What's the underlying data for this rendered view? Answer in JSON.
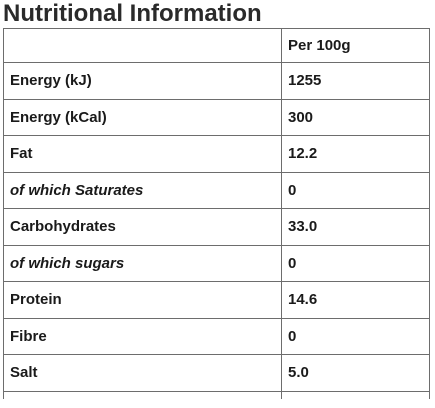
{
  "title": "Nutritional Information",
  "table": {
    "header": [
      "",
      "Per 100g"
    ],
    "rows": [
      {
        "label": "Energy (kJ)",
        "value": "1255",
        "sub": false
      },
      {
        "label": "Energy (kCal)",
        "value": "300",
        "sub": false
      },
      {
        "label": "Fat",
        "value": "12.2",
        "sub": false
      },
      {
        "label": "of which Saturates",
        "value": "0",
        "sub": true
      },
      {
        "label": "Carbohydrates",
        "value": "33.0",
        "sub": false
      },
      {
        "label": "of which sugars",
        "value": "0",
        "sub": true
      },
      {
        "label": "Protein",
        "value": "14.6",
        "sub": false
      },
      {
        "label": "Fibre",
        "value": "0",
        "sub": false
      },
      {
        "label": "Salt",
        "value": "5.0",
        "sub": false
      }
    ]
  }
}
